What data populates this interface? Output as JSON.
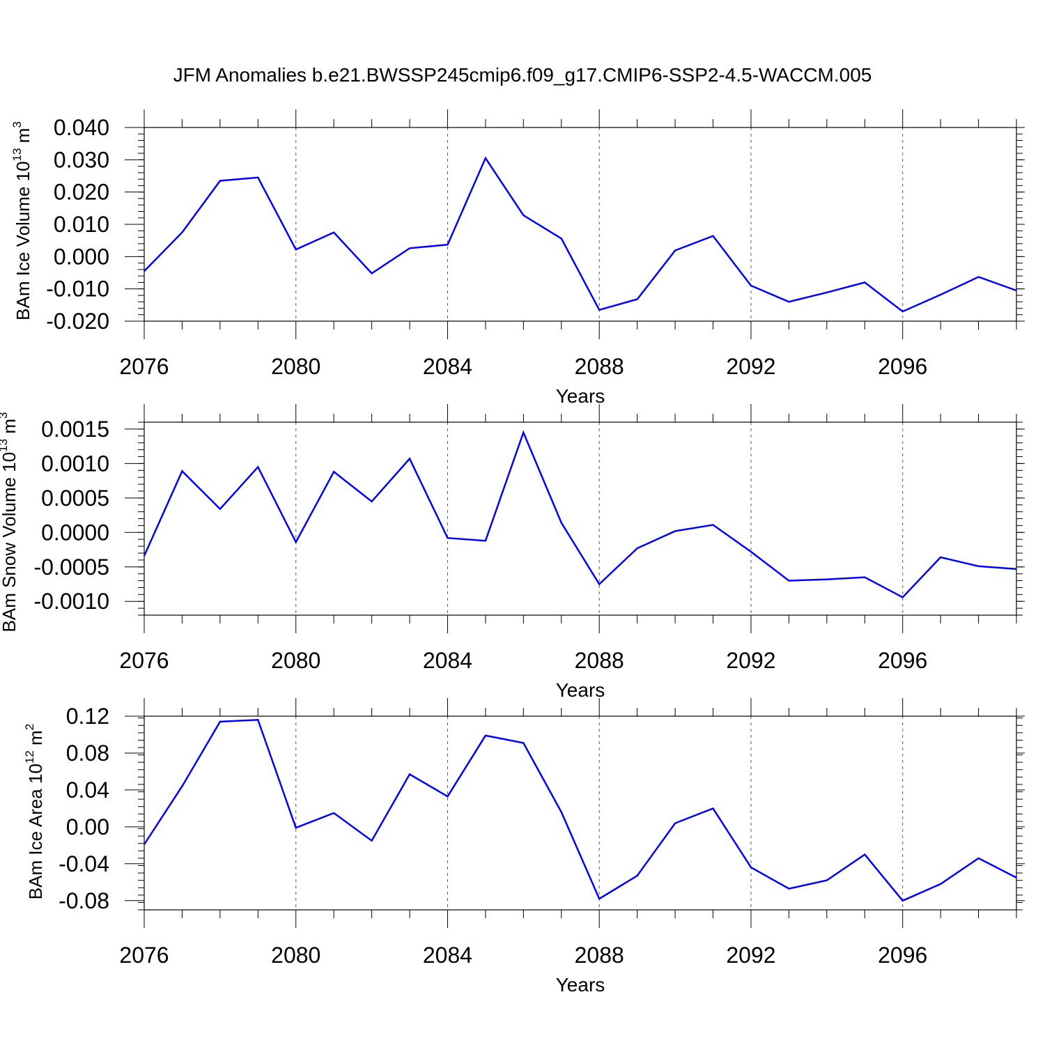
{
  "title": "JFM Anomalies b.e21.BWSSP245cmip6.f09_g17.CMIP6-SSP2-4.5-WACCM.005",
  "chart_data": [
    {
      "type": "line",
      "ylabel_main": "BAm Ice Volume 10",
      "ylabel_exp": "13",
      "ylabel_unit": " m",
      "ylabel_unit_exp": "3",
      "xlabel": "Years",
      "xlim": [
        2076,
        2099
      ],
      "ylim": [
        -0.02,
        0.04
      ],
      "yticks": [
        -0.02,
        -0.01,
        0.0,
        0.01,
        0.02,
        0.03,
        0.04
      ],
      "ytick_labels": [
        "-0.020",
        "-0.010",
        "0.000",
        "0.010",
        "0.020",
        "0.030",
        "0.040"
      ],
      "xticks": [
        2076,
        2080,
        2084,
        2088,
        2092,
        2096
      ],
      "xtick_labels": [
        "2076",
        "2080",
        "2084",
        "2088",
        "2092",
        "2096"
      ],
      "color": "#0000ff",
      "x": [
        2076,
        2077,
        2078,
        2079,
        2080,
        2081,
        2082,
        2083,
        2084,
        2085,
        2086,
        2087,
        2088,
        2089,
        2090,
        2091,
        2092,
        2093,
        2094,
        2095,
        2096,
        2097,
        2098,
        2099
      ],
      "values": [
        -0.0045,
        0.0075,
        0.0235,
        0.0245,
        0.0022,
        0.0075,
        -0.0052,
        0.0026,
        0.0037,
        0.0305,
        0.0128,
        0.0056,
        -0.0165,
        -0.0132,
        0.0019,
        0.0064,
        -0.009,
        -0.014,
        -0.0111,
        -0.008,
        -0.017,
        -0.0118,
        -0.0063,
        -0.0105
      ]
    },
    {
      "type": "line",
      "ylabel_main": "BAm Snow Volume 10",
      "ylabel_exp": "13",
      "ylabel_unit": " m",
      "ylabel_unit_exp": "3",
      "xlabel": "Years",
      "xlim": [
        2076,
        2099
      ],
      "ylim": [
        -0.0012,
        0.0016
      ],
      "yticks": [
        -0.001,
        -0.0005,
        0.0,
        0.0005,
        0.001,
        0.0015
      ],
      "ytick_labels": [
        "-0.0010",
        "-0.0005",
        "0.0000",
        "0.0005",
        "0.0010",
        "0.0015"
      ],
      "xticks": [
        2076,
        2080,
        2084,
        2088,
        2092,
        2096
      ],
      "xtick_labels": [
        "2076",
        "2080",
        "2084",
        "2088",
        "2092",
        "2096"
      ],
      "color": "#0000ff",
      "x": [
        2076,
        2077,
        2078,
        2079,
        2080,
        2081,
        2082,
        2083,
        2084,
        2085,
        2086,
        2087,
        2088,
        2089,
        2090,
        2091,
        2092,
        2093,
        2094,
        2095,
        2096,
        2097,
        2098,
        2099
      ],
      "values": [
        -0.00034,
        0.00089,
        0.00034,
        0.00095,
        -0.00014,
        0.00088,
        0.00045,
        0.00107,
        -8e-05,
        -0.00012,
        0.00145,
        0.00014,
        -0.00075,
        -0.00023,
        2e-05,
        0.00011,
        -0.00028,
        -0.0007,
        -0.00068,
        -0.00065,
        -0.00094,
        -0.00036,
        -0.00049,
        -0.00053
      ]
    },
    {
      "type": "line",
      "ylabel_main": "BAm Ice Area 10",
      "ylabel_exp": "12",
      "ylabel_unit": " m",
      "ylabel_unit_exp": "2",
      "xlabel": "Years",
      "xlim": [
        2076,
        2099
      ],
      "ylim": [
        -0.09,
        0.12
      ],
      "yticks": [
        -0.08,
        -0.04,
        0.0,
        0.04,
        0.08,
        0.12
      ],
      "ytick_labels": [
        "-0.08",
        "-0.04",
        "0.00",
        "0.04",
        "0.08",
        "0.12"
      ],
      "xticks": [
        2076,
        2080,
        2084,
        2088,
        2092,
        2096
      ],
      "xtick_labels": [
        "2076",
        "2080",
        "2084",
        "2088",
        "2092",
        "2096"
      ],
      "color": "#0000ff",
      "x": [
        2076,
        2077,
        2078,
        2079,
        2080,
        2081,
        2082,
        2083,
        2084,
        2085,
        2086,
        2087,
        2088,
        2089,
        2090,
        2091,
        2092,
        2093,
        2094,
        2095,
        2096,
        2097,
        2098,
        2099
      ],
      "values": [
        -0.019,
        0.044,
        0.114,
        0.116,
        -0.001,
        0.015,
        -0.015,
        0.057,
        0.033,
        0.099,
        0.091,
        0.016,
        -0.078,
        -0.053,
        0.004,
        0.02,
        -0.044,
        -0.067,
        -0.058,
        -0.03,
        -0.08,
        -0.062,
        -0.034,
        -0.055
      ]
    }
  ]
}
